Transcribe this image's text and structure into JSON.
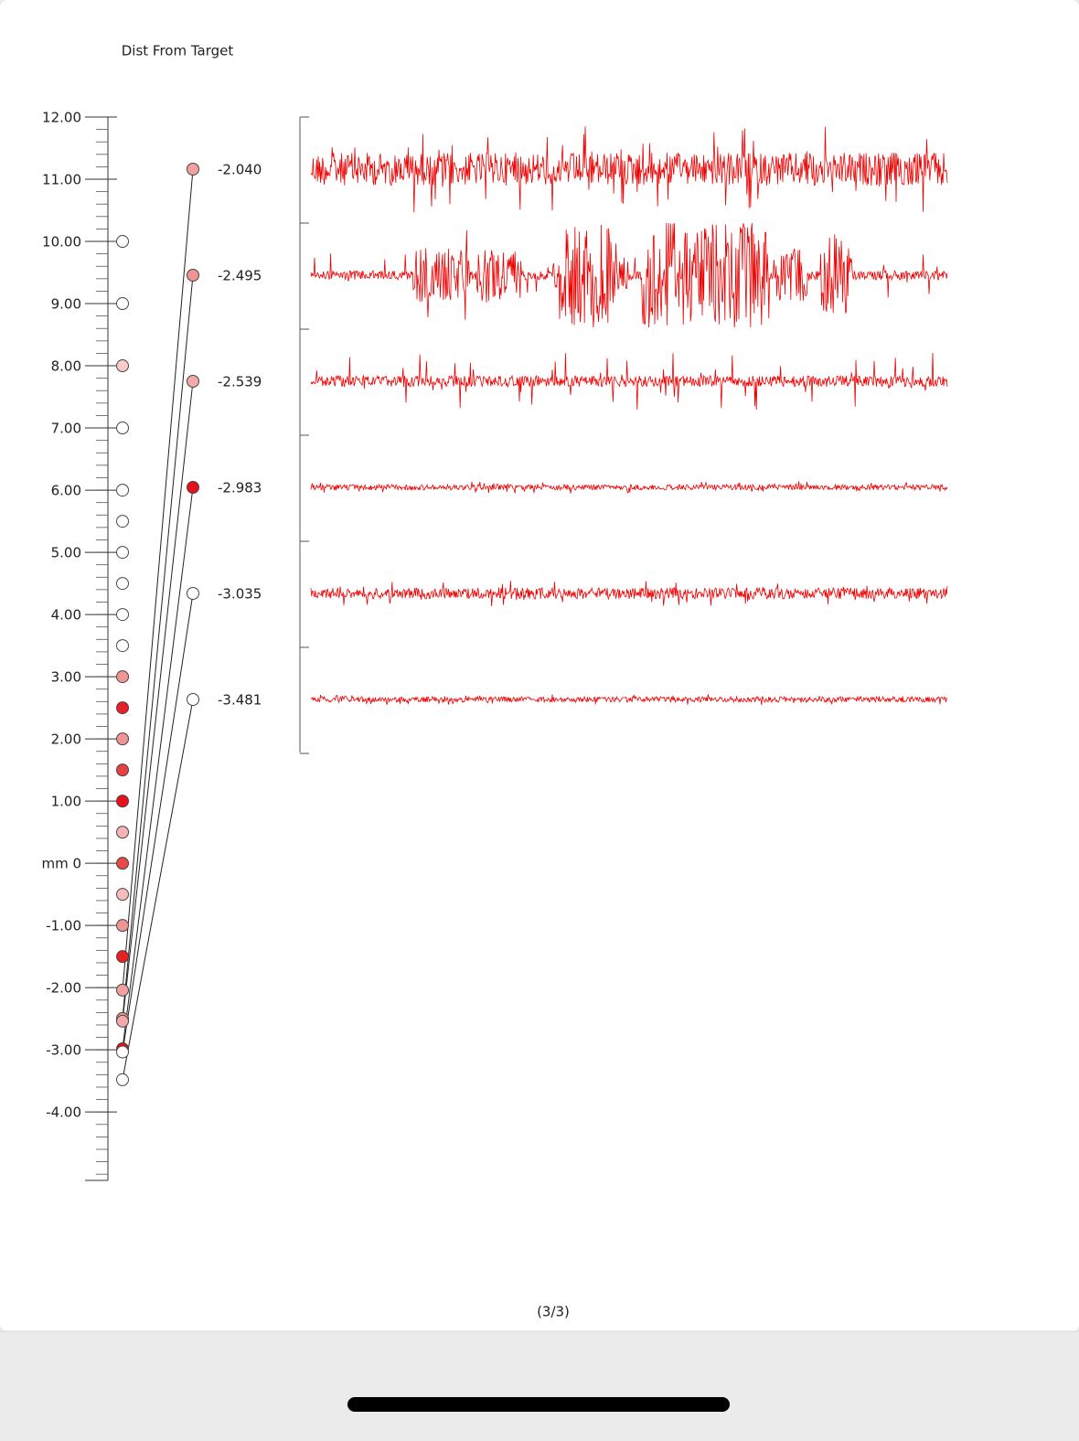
{
  "chart_data": {
    "type": "track",
    "title": "Dist From Target",
    "ylim": [
      -5.1,
      12
    ],
    "yticks": [
      {
        "value": 12,
        "label": "12.00"
      },
      {
        "value": 11,
        "label": "11.00"
      },
      {
        "value": 10,
        "label": "10.00"
      },
      {
        "value": 9,
        "label": "9.00"
      },
      {
        "value": 8,
        "label": "8.00"
      },
      {
        "value": 7,
        "label": "7.00"
      },
      {
        "value": 6,
        "label": "6.00"
      },
      {
        "value": 5,
        "label": "5.00"
      },
      {
        "value": 4,
        "label": "4.00"
      },
      {
        "value": 3,
        "label": "3.00"
      },
      {
        "value": 2,
        "label": "2.00"
      },
      {
        "value": 1,
        "label": "1.00"
      },
      {
        "value": 0,
        "label": "mm 0"
      },
      {
        "value": -1,
        "label": "-1.00"
      },
      {
        "value": -2,
        "label": "-2.00"
      },
      {
        "value": -3,
        "label": "-3.00"
      },
      {
        "value": -4,
        "label": "-4.00"
      }
    ],
    "passes": {
      "values": [
        10,
        9,
        8,
        7,
        6,
        5.5,
        5,
        4.5,
        4,
        3.5,
        3,
        2.5,
        2,
        1.5,
        1,
        0.5,
        0,
        -0.5,
        -1,
        -1.5
      ],
      "colors": [
        "#ffffff",
        "#ffffff",
        "#f8cccc",
        "#ffffff",
        "#ffffff",
        "#ffffff",
        "#ffffff",
        "#ffffff",
        "#ffffff",
        "#ffffff",
        "#f09494",
        "#e8202a",
        "#f09494",
        "#e84040",
        "#e8101a",
        "#f8b4b4",
        "#e84848",
        "#f8bcbc",
        "#f09494",
        "#e82020"
      ]
    },
    "recordings": {
      "values": [
        -2.04,
        -2.495,
        -2.539,
        -2.983,
        -3.035,
        -3.481
      ],
      "value_labels": [
        "-2.040",
        "-2.495",
        "-2.539",
        "-2.983",
        "-3.035",
        "-3.481"
      ],
      "colors": [
        "#f4a0a0",
        "#f09494",
        "#f4a8a8",
        "#e8101a",
        "#ffffff",
        "#ffffff"
      ]
    }
  },
  "page": {
    "footer": "(3/3)"
  }
}
